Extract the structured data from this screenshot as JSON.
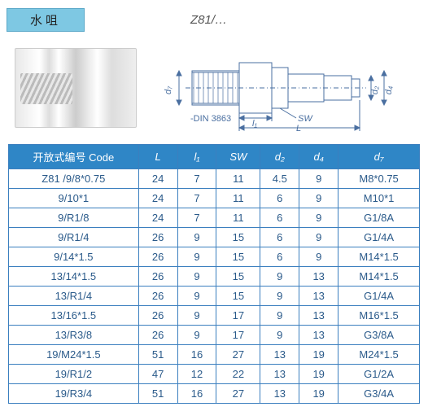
{
  "header": {
    "title": "水咀",
    "model": "Z81/…"
  },
  "diagram": {
    "din_label": "-DIN 3863",
    "dims": {
      "L": "L",
      "l1": "l₁",
      "SW": "SW",
      "d2": "d₂",
      "d4": "d₄",
      "d7": "d₇"
    }
  },
  "table": {
    "headers": [
      "开放式编号 Code",
      "L",
      "l₁",
      "SW",
      "d₂",
      "d₄",
      "d₇"
    ],
    "code_prefix": "Z81 /",
    "rows": [
      {
        "code": "9/8*0.75",
        "L": 24,
        "l1": 7,
        "SW": 11,
        "d2": 4.5,
        "d4": 9,
        "d7": "M8*0.75"
      },
      {
        "code": "9/10*1",
        "L": 24,
        "l1": 7,
        "SW": 11,
        "d2": 6,
        "d4": 9,
        "d7": "M10*1"
      },
      {
        "code": "9/R1/8",
        "L": 24,
        "l1": 7,
        "SW": 11,
        "d2": 6,
        "d4": 9,
        "d7": "G1/8A"
      },
      {
        "code": "9/R1/4",
        "L": 26,
        "l1": 9,
        "SW": 15,
        "d2": 6,
        "d4": 9,
        "d7": "G1/4A"
      },
      {
        "code": "9/14*1.5",
        "L": 26,
        "l1": 9,
        "SW": 15,
        "d2": 6,
        "d4": 9,
        "d7": "M14*1.5"
      },
      {
        "code": "13/14*1.5",
        "L": 26,
        "l1": 9,
        "SW": 15,
        "d2": 9,
        "d4": 13,
        "d7": "M14*1.5"
      },
      {
        "code": "13/R1/4",
        "L": 26,
        "l1": 9,
        "SW": 15,
        "d2": 9,
        "d4": 13,
        "d7": "G1/4A"
      },
      {
        "code": "13/16*1.5",
        "L": 26,
        "l1": 9,
        "SW": 17,
        "d2": 9,
        "d4": 13,
        "d7": "M16*1.5"
      },
      {
        "code": "13/R3/8",
        "L": 26,
        "l1": 9,
        "SW": 17,
        "d2": 9,
        "d4": 13,
        "d7": "G3/8A"
      },
      {
        "code": "19/M24*1.5",
        "L": 51,
        "l1": 16,
        "SW": 27,
        "d2": 13,
        "d4": 19,
        "d7": "M24*1.5"
      },
      {
        "code": "19/R1/2",
        "L": 47,
        "l1": 12,
        "SW": 22,
        "d2": 13,
        "d4": 19,
        "d7": "G1/2A"
      },
      {
        "code": "19/R3/4",
        "L": 51,
        "l1": 16,
        "SW": 27,
        "d2": 13,
        "d4": 19,
        "d7": "G3/4A"
      }
    ]
  },
  "colors": {
    "header_bg": "#2f86c6",
    "border": "#3b7fbf",
    "badge_bg": "#7ec8e3",
    "text_blue": "#2a5a8a"
  }
}
